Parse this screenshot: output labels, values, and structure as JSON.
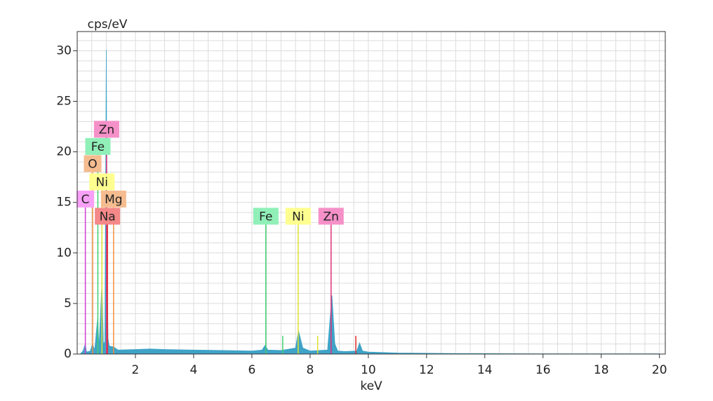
{
  "chart_data": {
    "type": "spectrum",
    "y_label": "cps/eV",
    "x_label": "keV",
    "xlim": [
      0,
      20.2
    ],
    "ylim": [
      0,
      31.9
    ],
    "xticks": [
      2,
      4,
      6,
      8,
      10,
      12,
      14,
      16,
      18,
      20
    ],
    "yticks": [
      0,
      5,
      10,
      15,
      20,
      25,
      30
    ],
    "grid": true,
    "grid_step": {
      "x": 0.5,
      "y": 1
    },
    "spectrum": {
      "color": "#3fa3c8",
      "x": [
        0.1,
        0.2,
        0.277,
        0.32,
        0.45,
        0.525,
        0.6,
        0.705,
        0.75,
        0.851,
        0.9,
        0.95,
        1.0,
        1.03,
        1.06,
        1.1,
        1.25,
        1.4,
        2,
        2.5,
        3,
        4,
        5,
        6,
        6.35,
        6.45,
        6.55,
        7.0,
        7.5,
        7.6,
        7.75,
        8.0,
        8.3,
        8.6,
        8.75,
        8.85,
        8.95,
        9.2,
        9.6,
        9.7,
        9.8,
        10,
        11,
        12,
        13,
        15,
        20
      ],
      "values": [
        0,
        0.3,
        1.0,
        0.2,
        0.3,
        1.0,
        0.4,
        3.6,
        0.6,
        7.2,
        1.0,
        1.2,
        30.1,
        8.0,
        1.5,
        0.8,
        0.7,
        0.4,
        0.45,
        0.5,
        0.45,
        0.4,
        0.35,
        0.3,
        0.4,
        0.85,
        0.4,
        0.35,
        0.6,
        2.3,
        0.6,
        0.3,
        0.35,
        0.4,
        5.8,
        1.0,
        0.3,
        0.25,
        0.3,
        1.1,
        0.3,
        0.2,
        0.1,
        0.08,
        0.05,
        0.03,
        0.02
      ]
    },
    "markers": [
      {
        "label": "Zn",
        "energy": 1.01,
        "level": 21.4,
        "color": "#f590c8",
        "line_color": "#e0307a"
      },
      {
        "label": "Fe",
        "energy": 0.71,
        "level": 19.7,
        "color": "#90f0b8",
        "line_color": "#40d070"
      },
      {
        "label": "O",
        "energy": 0.53,
        "level": 18.0,
        "color": "#f5bc90",
        "line_color": "#f09040"
      },
      {
        "label": "Ni",
        "energy": 0.85,
        "level": 16.2,
        "color": "#ffff90",
        "line_color": "#e0e030"
      },
      {
        "label": "C",
        "energy": 0.28,
        "level": 14.5,
        "color": "#f8a0f8",
        "line_color": "#d040d0"
      },
      {
        "label": "Mg",
        "energy": 1.25,
        "level": 14.5,
        "color": "#f5bc90",
        "line_color": "#f09040"
      },
      {
        "label": "Na",
        "energy": 1.04,
        "level": 12.8,
        "color": "#f58888",
        "line_color": "#e03030"
      },
      {
        "label": "Fe",
        "energy": 6.48,
        "level": 12.8,
        "color": "#90f0b8",
        "line_color": "#40d070"
      },
      {
        "label": "Ni",
        "energy": 7.59,
        "level": 12.8,
        "color": "#ffff90",
        "line_color": "#e0e030"
      },
      {
        "label": "Zn",
        "energy": 8.72,
        "level": 12.8,
        "color": "#f590c8",
        "line_color": "#e0307a"
      }
    ],
    "minor_lines": [
      {
        "energy": 7.06,
        "height": 1.8,
        "color": "#40d070"
      },
      {
        "energy": 8.26,
        "height": 1.8,
        "color": "#e0e030"
      },
      {
        "energy": 9.57,
        "height": 1.8,
        "color": "#e03030"
      }
    ]
  }
}
